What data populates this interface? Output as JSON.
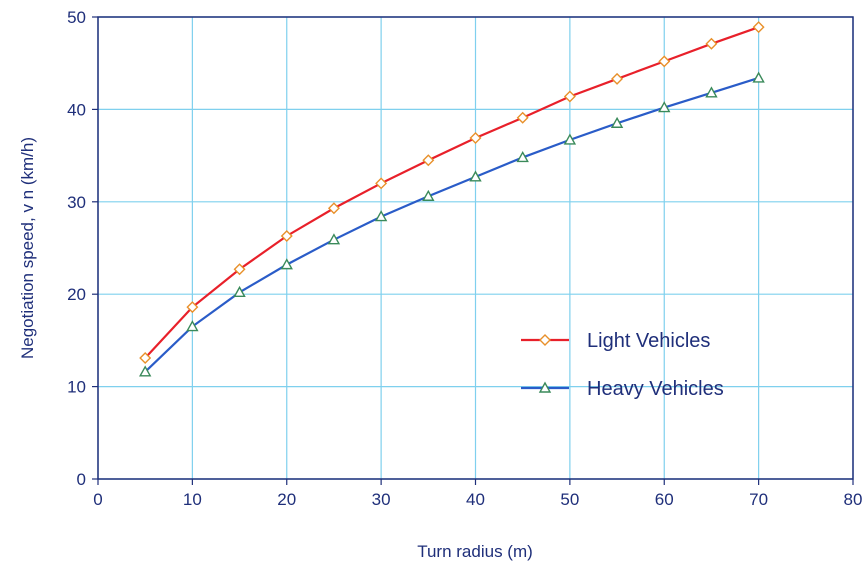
{
  "chart_data": {
    "type": "line",
    "xlabel": "Turn radius (m)",
    "ylabel": "Negotiation speed, v n (km/h)",
    "xlim": [
      0,
      80
    ],
    "ylim": [
      0,
      50
    ],
    "x_ticks": [
      "0",
      "10",
      "20",
      "30",
      "40",
      "50",
      "60",
      "70",
      "80"
    ],
    "y_ticks": [
      "0",
      "10",
      "20",
      "30",
      "40",
      "50"
    ],
    "grid": true,
    "legend_position": "center-right",
    "x": [
      5,
      10,
      15,
      20,
      25,
      30,
      35,
      40,
      45,
      50,
      55,
      60,
      65,
      70
    ],
    "series": [
      {
        "name": "Light Vehicles",
        "marker": "diamond",
        "color": "#e8202a",
        "marker_color": "#e8902a",
        "values": [
          13.1,
          18.6,
          22.7,
          26.3,
          29.3,
          32.0,
          34.5,
          36.9,
          39.1,
          41.4,
          43.3,
          45.2,
          47.1,
          48.9
        ]
      },
      {
        "name": "Heavy Vehicles",
        "marker": "triangle",
        "color": "#2a5cc8",
        "marker_color": "#3a8a5a",
        "values": [
          11.6,
          16.5,
          20.2,
          23.2,
          25.9,
          28.4,
          30.6,
          32.7,
          34.8,
          36.7,
          38.5,
          40.2,
          41.8,
          43.4
        ]
      }
    ]
  },
  "colors": {
    "grid": "#7fd0ee",
    "axis": "#1f2f7a",
    "frame": "#1f2f7a"
  }
}
